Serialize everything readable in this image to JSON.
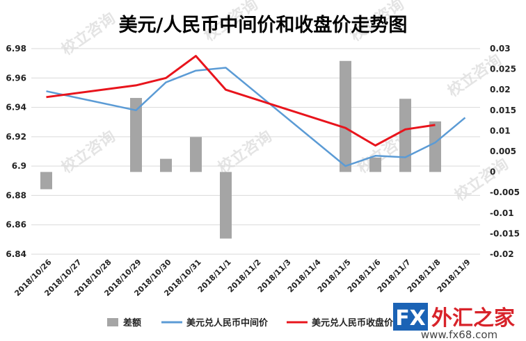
{
  "chart_data": {
    "type": "bar+line",
    "title": "美元/人民币中间价和收盘价走势图",
    "categories": [
      "2018/10/26",
      "2018/10/27",
      "2018/10/28",
      "2018/10/29",
      "2018/10/30",
      "2018/10/31",
      "2018/11/1",
      "2018/11/2",
      "2018/11/3",
      "2018/11/4",
      "2018/11/5",
      "2018/11/6",
      "2018/11/7",
      "2018/11/8",
      "2018/11/9"
    ],
    "y_left": {
      "min": 6.84,
      "max": 6.98,
      "step": 0.02,
      "ticks": [
        "6.84",
        "6.86",
        "6.88",
        "6.9",
        "6.92",
        "6.94",
        "6.96",
        "6.98"
      ]
    },
    "y_right": {
      "min": -0.02,
      "max": 0.03,
      "step": 0.005,
      "ticks": [
        "-0.02",
        "-0.015",
        "-0.01",
        "-0.005",
        "0",
        "0.005",
        "0.01",
        "0.015",
        "0.02",
        "0.025",
        "0.03"
      ]
    },
    "grid": true,
    "legend_position": "bottom",
    "series": [
      {
        "name": "差额",
        "type": "bar",
        "axis": "right",
        "color": "#a5a5a5",
        "values": [
          -0.0042,
          null,
          null,
          0.018,
          0.0032,
          0.0085,
          -0.0162,
          null,
          null,
          null,
          0.027,
          0.0035,
          0.0178,
          0.0123,
          null
        ]
      },
      {
        "name": "美元兑人民币中间价",
        "type": "line",
        "axis": "left",
        "color": "#5b9bd5",
        "points": [
          [
            0,
            6.951
          ],
          [
            3,
            6.938
          ],
          [
            4,
            6.957
          ],
          [
            5,
            6.965
          ],
          [
            6,
            6.967
          ],
          [
            10,
            6.9
          ],
          [
            11,
            6.907
          ],
          [
            12,
            6.906
          ],
          [
            13,
            6.916
          ],
          [
            14,
            6.933
          ]
        ]
      },
      {
        "name": "美元兑人民币收盘价",
        "type": "line",
        "axis": "left",
        "color": "#e8141c",
        "points": [
          [
            0,
            6.947
          ],
          [
            3,
            6.955
          ],
          [
            4,
            6.96
          ],
          [
            5,
            6.975
          ],
          [
            6,
            6.952
          ],
          [
            10,
            6.926
          ],
          [
            11,
            6.914
          ],
          [
            12,
            6.925
          ],
          [
            13,
            6.928
          ]
        ]
      }
    ]
  },
  "branding": {
    "watermark": "校立咨询",
    "logo_fx": "FX",
    "logo_cn": "外汇之家",
    "logo_url": "www.fx68.com"
  }
}
